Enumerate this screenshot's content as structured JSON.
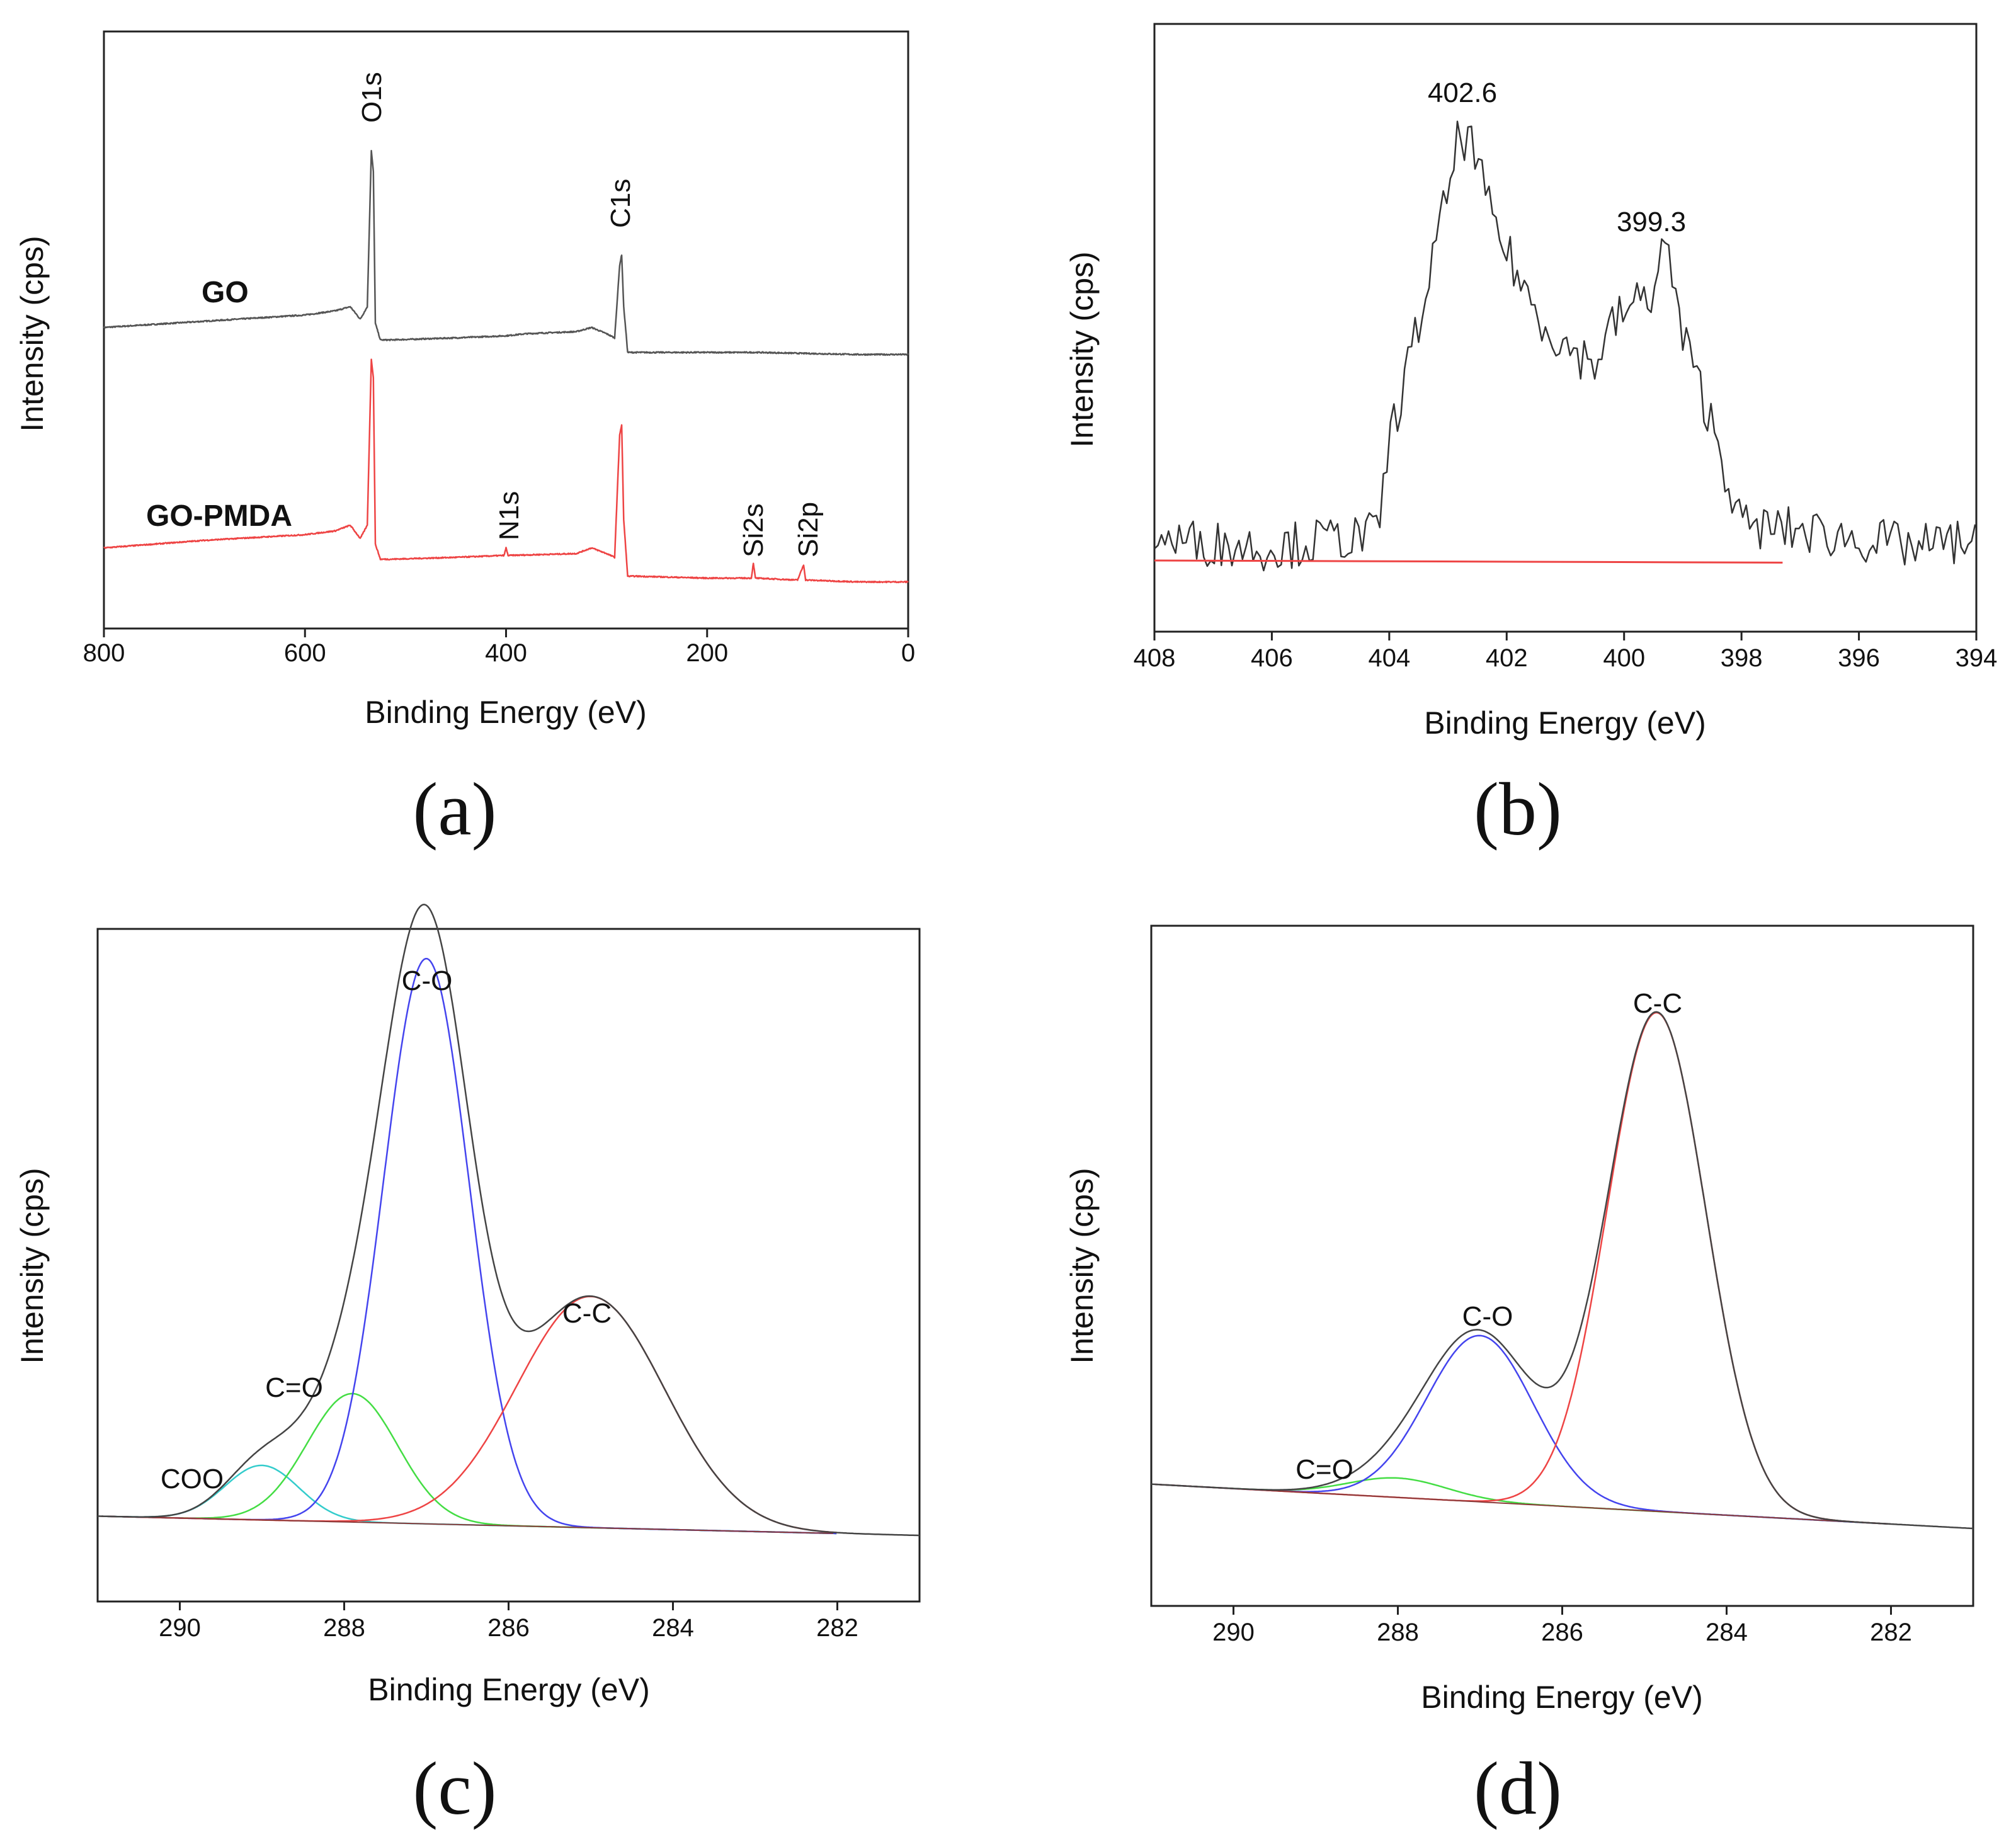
{
  "figure": {
    "panel_labels": [
      "(a)",
      "(b)",
      "(c)",
      "(d)"
    ]
  },
  "chart_data": [
    {
      "panel": "(a)",
      "type": "line",
      "title": "",
      "xlabel": "Binding Energy (eV)",
      "ylabel": "Intensity (cps)",
      "xlim": [
        800,
        0
      ],
      "xticks": [
        800,
        600,
        400,
        200,
        0
      ],
      "yticks_shown": false,
      "series": [
        {
          "name": "GO",
          "color": "#555555",
          "x": [
            800,
            700,
            600,
            570,
            555,
            545,
            538,
            534,
            532,
            530,
            525,
            515,
            450,
            400,
            380,
            330,
            315,
            300,
            292,
            287,
            285,
            283,
            279,
            270,
            200,
            150,
            50,
            0
          ],
          "y": [
            0.0,
            0.03,
            0.06,
            0.08,
            0.1,
            0.04,
            0.1,
            0.85,
            0.75,
            0.02,
            -0.06,
            -0.06,
            -0.05,
            -0.04,
            -0.03,
            -0.02,
            0.0,
            -0.03,
            -0.05,
            0.3,
            0.35,
            0.1,
            -0.12,
            -0.12,
            -0.12,
            -0.12,
            -0.13,
            -0.13
          ]
        },
        {
          "name": "GO-PMDA",
          "color": "#ee4444",
          "x": [
            800,
            700,
            600,
            570,
            555,
            545,
            538,
            534,
            532,
            530,
            525,
            515,
            450,
            402,
            400,
            398,
            330,
            315,
            300,
            292,
            287,
            285,
            283,
            279,
            270,
            200,
            156,
            154,
            152,
            110,
            104,
            102,
            50,
            0
          ],
          "y": [
            0.0,
            0.04,
            0.07,
            0.09,
            0.12,
            0.05,
            0.12,
            1.0,
            0.9,
            0.02,
            -0.06,
            -0.06,
            -0.05,
            -0.04,
            0.0,
            -0.04,
            -0.03,
            0.0,
            -0.03,
            -0.05,
            0.6,
            0.65,
            0.15,
            -0.15,
            -0.15,
            -0.16,
            -0.16,
            -0.08,
            -0.16,
            -0.17,
            -0.09,
            -0.17,
            -0.18,
            -0.18
          ]
        }
      ],
      "annotations": [
        "O1s",
        "C1s",
        "N1s",
        "Si2s",
        "Si2p"
      ]
    },
    {
      "panel": "(b)",
      "type": "line",
      "title": "",
      "xlabel": "Binding Energy (eV)",
      "ylabel": "Intensity (cps)",
      "xlim": [
        408,
        394
      ],
      "xticks": [
        408,
        406,
        404,
        402,
        400,
        398,
        396,
        394
      ],
      "yticks_shown": false,
      "series": [
        {
          "name": "N1s spectrum",
          "color": "#333333",
          "x": [
            408,
            407,
            406,
            405,
            404.2,
            404,
            403.5,
            403,
            402.8,
            402.6,
            402.3,
            402,
            401.5,
            401,
            400.5,
            400.2,
            400,
            399.5,
            399.3,
            399,
            398.5,
            398,
            397,
            396,
            395,
            394
          ],
          "y": [
            0.05,
            0.04,
            0.03,
            0.05,
            0.06,
            0.28,
            0.55,
            0.86,
            1.0,
            0.97,
            0.82,
            0.72,
            0.58,
            0.5,
            0.46,
            0.55,
            0.58,
            0.63,
            0.75,
            0.52,
            0.32,
            0.08,
            0.07,
            0.05,
            0.03,
            0.05
          ]
        },
        {
          "name": "baseline",
          "color": "#ee4444",
          "x": [
            408,
            397.3
          ],
          "y": [
            0.0,
            -0.005
          ]
        }
      ],
      "annotations": [
        "402.6",
        "399.3"
      ]
    },
    {
      "panel": "(c)",
      "type": "line",
      "title": "",
      "xlabel": "Binding Energy (eV)",
      "ylabel": "Intensity (cps)",
      "xlim": [
        291,
        281
      ],
      "xticks": [
        290,
        288,
        286,
        284,
        282
      ],
      "yticks_shown": false,
      "peaks": [
        {
          "label": "COO",
          "center": 289.0,
          "height": 0.085,
          "sigma": 0.45,
          "color": "#33cccc"
        },
        {
          "label": "C=O",
          "center": 287.9,
          "height": 0.2,
          "sigma": 0.55,
          "color": "#44dd44"
        },
        {
          "label": "C-O",
          "center": 287.0,
          "height": 0.88,
          "sigma": 0.52,
          "color": "#4444ee"
        },
        {
          "label": "C-C",
          "center": 285.0,
          "height": 0.36,
          "sigma": 0.9,
          "color": "#ee4444"
        }
      ],
      "envelope_color": "#444444",
      "annotations": [
        "C-O",
        "C-C",
        "C=O",
        "COO"
      ]
    },
    {
      "panel": "(d)",
      "type": "line",
      "title": "",
      "xlabel": "Binding Energy (eV)",
      "ylabel": "Intensity (cps)",
      "xlim": [
        291,
        281
      ],
      "xticks": [
        290,
        288,
        286,
        284,
        282
      ],
      "yticks_shown": false,
      "peaks": [
        {
          "label": "C=O",
          "center": 288.0,
          "height": 0.035,
          "sigma": 0.6,
          "color": "#44dd44"
        },
        {
          "label": "C-O",
          "center": 287.0,
          "height": 0.3,
          "sigma": 0.65,
          "color": "#4444ee"
        },
        {
          "label": "C-C",
          "center": 284.85,
          "height": 0.9,
          "sigma": 0.6,
          "color": "#ee4444"
        }
      ],
      "envelope_color": "#444444",
      "annotations": [
        "C-C",
        "C-O",
        "C=O"
      ]
    }
  ]
}
